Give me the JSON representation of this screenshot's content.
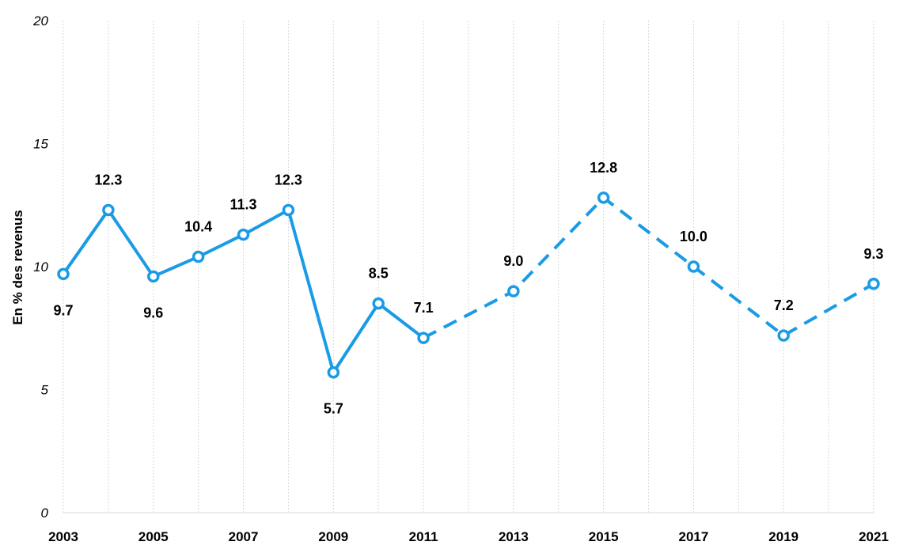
{
  "chart_data": {
    "type": "line",
    "title": "",
    "xlabel": "",
    "ylabel": "En % des revenus",
    "ylim": [
      0,
      20
    ],
    "yticks": [
      0,
      5,
      10,
      15,
      20
    ],
    "xlim": [
      2003,
      2021
    ],
    "xticks": [
      2003,
      2005,
      2007,
      2009,
      2011,
      2013,
      2015,
      2017,
      2019,
      2021
    ],
    "grid": "vertical",
    "line_color": "#1a9be6",
    "series": [
      {
        "style": "solid",
        "x": [
          2003,
          2004,
          2005,
          2006,
          2007,
          2008,
          2009,
          2010,
          2011
        ],
        "values": [
          9.7,
          12.3,
          9.6,
          10.4,
          11.3,
          12.3,
          5.7,
          8.5,
          7.1
        ],
        "labels": [
          "9.7",
          "12.3",
          "9.6",
          "10.4",
          "11.3",
          "12.3",
          "5.7",
          "8.5",
          "7.1"
        ]
      },
      {
        "style": "dashed",
        "x": [
          2011,
          2013,
          2015,
          2017,
          2019,
          2021
        ],
        "values": [
          7.1,
          9.0,
          12.8,
          10.0,
          7.2,
          9.3
        ],
        "labels": [
          "7.1",
          "9.0",
          "12.8",
          "10.0",
          "7.2",
          "9.3"
        ]
      }
    ]
  }
}
